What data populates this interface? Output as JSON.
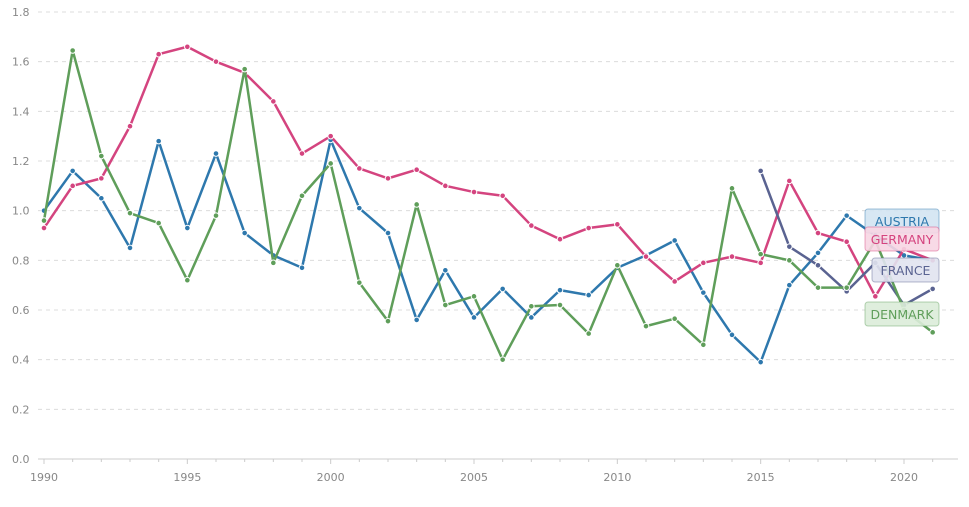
{
  "chart_data": {
    "type": "line",
    "title": "",
    "xlabel": "",
    "ylabel": "",
    "xlim": [
      1990,
      2021
    ],
    "ylim": [
      0,
      1.8
    ],
    "x_ticks": [
      1990,
      1995,
      2000,
      2005,
      2010,
      2015,
      2020
    ],
    "y_ticks": [
      "0.0",
      "0.2",
      "0.4",
      "0.6",
      "0.8",
      "1.0",
      "1.2",
      "1.4",
      "1.6",
      "1.8"
    ],
    "grid": "horizontal dashed",
    "legend": "inline labels at right end of series",
    "series": [
      {
        "name": "AUSTRIA",
        "color": "#2e78ad",
        "label_bg": "#d3e4f2",
        "x": [
          1990,
          1991,
          1992,
          1993,
          1994,
          1995,
          1996,
          1997,
          1998,
          1999,
          2000,
          2001,
          2002,
          2003,
          2004,
          2005,
          2006,
          2007,
          2008,
          2009,
          2010,
          2011,
          2012,
          2013,
          2014,
          2015,
          2016,
          2017,
          2018,
          2019,
          2020,
          2021
        ],
        "values": [
          1.0,
          1.16,
          1.05,
          0.85,
          1.28,
          0.93,
          1.23,
          0.91,
          0.82,
          0.77,
          1.285,
          1.01,
          0.91,
          0.56,
          0.76,
          0.57,
          0.685,
          0.57,
          0.68,
          0.66,
          0.77,
          0.82,
          0.88,
          0.67,
          0.5,
          0.39,
          0.7,
          0.83,
          0.98,
          0.9,
          0.82,
          0.8
        ]
      },
      {
        "name": "GERMANY",
        "color": "#d4447f",
        "label_bg": "#f7d6e3",
        "x": [
          1990,
          1991,
          1992,
          1993,
          1994,
          1995,
          1996,
          1997,
          1998,
          1999,
          2000,
          2001,
          2002,
          2003,
          2004,
          2005,
          2006,
          2007,
          2008,
          2009,
          2010,
          2011,
          2012,
          2013,
          2014,
          2015,
          2016,
          2017,
          2018,
          2019,
          2020,
          2021
        ],
        "values": [
          0.93,
          1.1,
          1.13,
          1.34,
          1.63,
          1.66,
          1.6,
          1.555,
          1.44,
          1.23,
          1.3,
          1.17,
          1.13,
          1.165,
          1.1,
          1.075,
          1.06,
          0.94,
          0.885,
          0.93,
          0.945,
          0.815,
          0.715,
          0.79,
          0.815,
          0.79,
          1.12,
          0.91,
          0.875,
          0.655,
          0.845,
          0.8
        ]
      },
      {
        "name": "FRANCE",
        "color": "#5a6391",
        "label_bg": "#e1e3ef",
        "x": [
          2015,
          2016,
          2017,
          2018,
          2019,
          2020,
          2021
        ],
        "values": [
          1.16,
          0.855,
          0.78,
          0.675,
          0.79,
          0.62,
          0.685
        ]
      },
      {
        "name": "DENMARK",
        "color": "#5f9e5a",
        "label_bg": "#dcecd9",
        "x": [
          1990,
          1991,
          1992,
          1993,
          1994,
          1995,
          1996,
          1997,
          1998,
          1999,
          2000,
          2001,
          2002,
          2003,
          2004,
          2005,
          2006,
          2007,
          2008,
          2009,
          2010,
          2011,
          2012,
          2013,
          2014,
          2015,
          2016,
          2017,
          2018,
          2019,
          2020,
          2021
        ],
        "values": [
          0.96,
          1.645,
          1.22,
          0.99,
          0.95,
          0.72,
          0.98,
          1.57,
          0.79,
          1.06,
          1.19,
          0.71,
          0.555,
          1.025,
          0.62,
          0.655,
          0.4,
          0.615,
          0.62,
          0.505,
          0.78,
          0.535,
          0.565,
          0.46,
          1.09,
          0.825,
          0.8,
          0.69,
          0.69,
          0.88,
          0.6,
          0.51
        ]
      }
    ]
  }
}
